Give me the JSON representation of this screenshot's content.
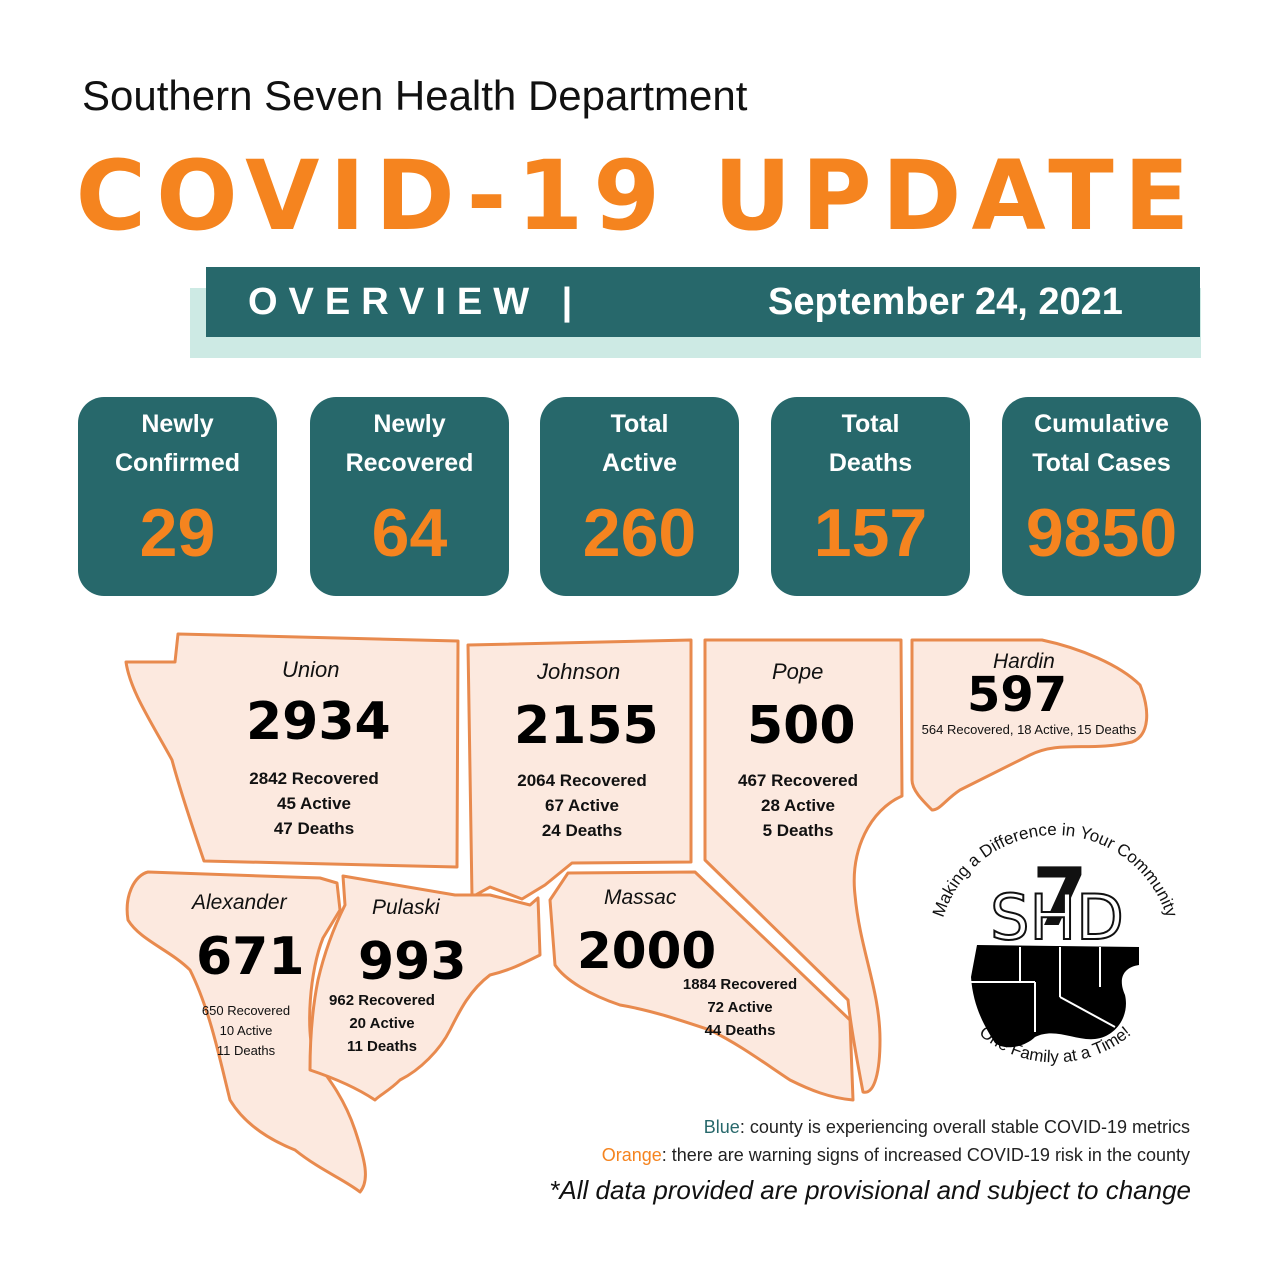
{
  "header": {
    "organization": "Southern Seven Health Department",
    "headline": "COVID-19 UPDATE",
    "overview": "OVERVIEW |",
    "date": "September 24, 2021"
  },
  "stats": [
    {
      "label_line1": "Newly",
      "label_line2": "Confirmed",
      "value": "29"
    },
    {
      "label_line1": "Newly",
      "label_line2": "Recovered",
      "value": "64"
    },
    {
      "label_line1": "Total",
      "label_line2": "Active",
      "value": "260"
    },
    {
      "label_line1": "Total",
      "label_line2": "Deaths",
      "value": "157"
    },
    {
      "label_line1": "Cumulative",
      "label_line2": "Total Cases",
      "value": "9850"
    }
  ],
  "counties": {
    "union": {
      "name": "Union",
      "total": "2934",
      "recovered": "2842 Recovered",
      "active": "45 Active",
      "deaths": "47 Deaths"
    },
    "johnson": {
      "name": "Johnson",
      "total": "2155",
      "recovered": "2064 Recovered",
      "active": "67 Active",
      "deaths": "24 Deaths"
    },
    "pope": {
      "name": "Pope",
      "total": "500",
      "recovered": "467 Recovered",
      "active": "28 Active",
      "deaths": "5 Deaths"
    },
    "hardin": {
      "name": "Hardin",
      "total": "597",
      "summary": "564 Recovered, 18 Active, 15 Deaths"
    },
    "alexander": {
      "name": "Alexander",
      "total": "671",
      "recovered": "650 Recovered",
      "active": "10 Active",
      "deaths": "11 Deaths"
    },
    "pulaski": {
      "name": "Pulaski",
      "total": "993",
      "recovered": "962 Recovered",
      "active": "20 Active",
      "deaths": "11 Deaths"
    },
    "massac": {
      "name": "Massac",
      "total": "2000",
      "recovered": "1884 Recovered",
      "active": "72 Active",
      "deaths": "44 Deaths"
    }
  },
  "logo": {
    "top_text": "Making a Difference in Your Community",
    "bottom_text": "One Family at a Time!",
    "mark": "SHD",
    "numeral": "7"
  },
  "legend": {
    "blue_word": "Blue",
    "blue_text": ": county is experiencing overall stable COVID-19 metrics",
    "orange_word": "Orange",
    "orange_text": ": there are warning signs of increased COVID-19 risk in the county"
  },
  "disclaimer": "*All data provided are provisional and subject to change",
  "colors": {
    "teal": "#27686b",
    "orange": "#f5841f",
    "county_fill": "#fce9df",
    "county_border": "#e88a4e",
    "banner_shadow": "#cdeae4"
  }
}
